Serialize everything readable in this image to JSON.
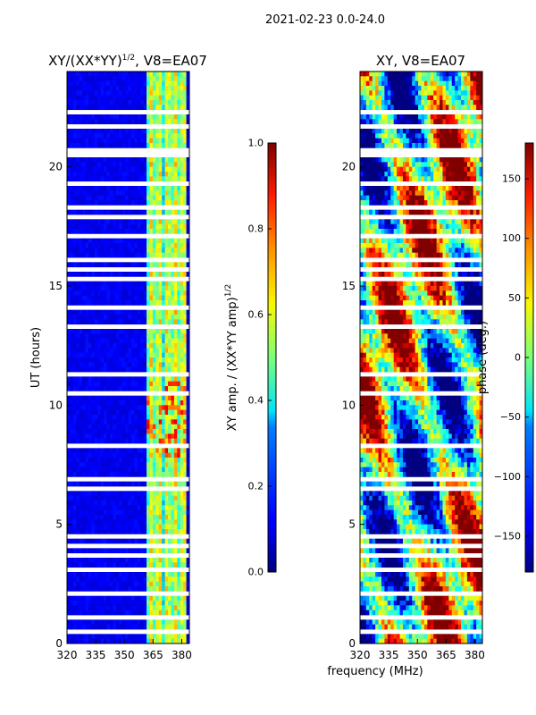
{
  "figure": {
    "suptitle": "2021-02-23 0.0-24.0",
    "shared_xlabel": "frequency (MHz)"
  },
  "chart_data": [
    {
      "type": "heatmap",
      "title_main": "XY/(XX*YY)",
      "title_sup": "1/2",
      "title_tail": ", V8=EA07",
      "ylabel": "UT (hours)",
      "xlim": [
        320,
        384
      ],
      "ylim": [
        0,
        24
      ],
      "xticks": [
        320,
        335,
        350,
        365,
        380
      ],
      "yticks": [
        0,
        5,
        10,
        15,
        20
      ],
      "colorbar": {
        "label_main": "XY amp. / (XX*YY amp)",
        "label_sup": "1/2",
        "range": [
          0.0,
          1.0
        ],
        "ticks": [
          "0.0",
          "0.2",
          "0.4",
          "0.6",
          "0.8",
          "1.0"
        ],
        "tick_values": [
          0.0,
          0.2,
          0.4,
          0.6,
          0.8,
          1.0
        ],
        "colormap": "jet"
      },
      "notable_features": "low amplitude (~0.05-0.15) from 320-362 MHz; bright vertical channel bands (~0.3-0.7) near 363-381 MHz; flagged (white) time rows"
    },
    {
      "type": "heatmap",
      "title": "XY, V8=EA07",
      "xlim": [
        320,
        384
      ],
      "ylim": [
        0,
        24
      ],
      "xticks": [
        320,
        335,
        350,
        365,
        380
      ],
      "yticks": [
        0,
        5,
        10,
        15,
        20
      ],
      "colorbar": {
        "label": "phase (deg.)",
        "range": [
          -180,
          180
        ],
        "ticks": [
          "−150",
          "−100",
          "−50",
          "0",
          "50",
          "100",
          "150"
        ],
        "tick_values": [
          -150,
          -100,
          -50,
          0,
          50,
          100,
          150
        ],
        "colormap": "jet"
      },
      "notable_features": "phase wraps across full range; structured patterns vs frequency; flagged (white) time rows"
    }
  ]
}
